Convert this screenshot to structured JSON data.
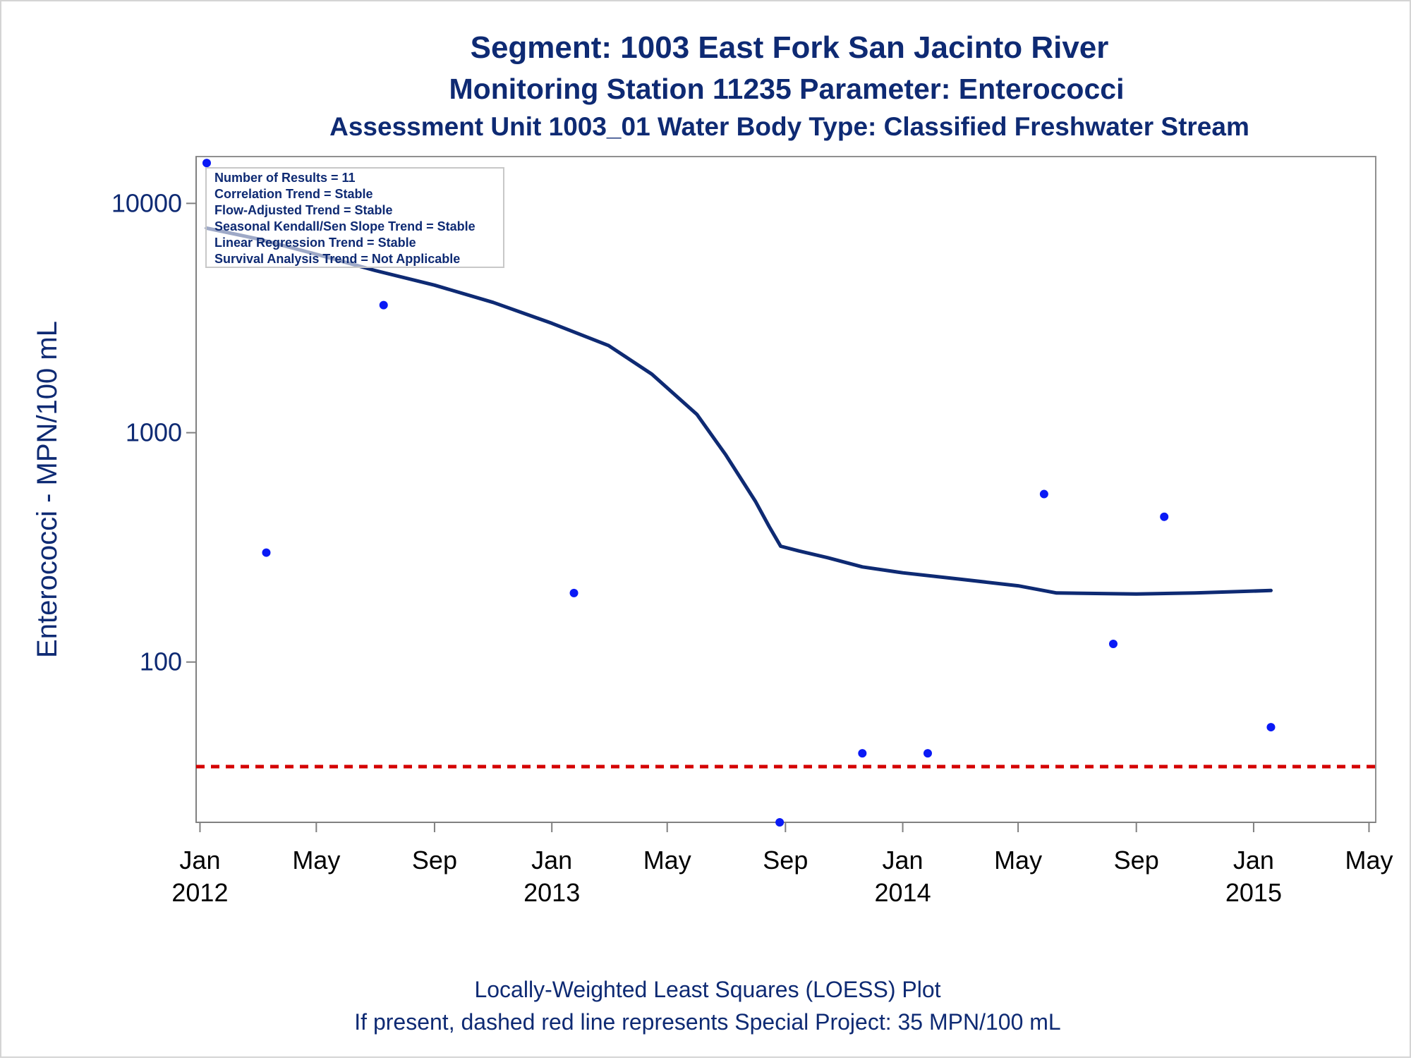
{
  "titles": {
    "line1": "Segment: 1003  East Fork San Jacinto River",
    "line2": "Monitoring Station 11235 Parameter: Enterococci",
    "line3": "Assessment Unit 1003_01   Water Body Type: Classified Freshwater Stream"
  },
  "footnotes": {
    "line1": "Locally-Weighted Least Squares (LOESS) Plot",
    "line2": "If present, dashed red line represents Special Project: 35 MPN/100 mL"
  },
  "stats_box": [
    "Number of Results = 11",
    "Correlation Trend = Stable",
    "Flow-Adjusted Trend = Stable",
    "Seasonal Kendall/Sen Slope Trend = Stable",
    "Linear Regression Trend = Stable",
    "Survival Analysis Trend = Not Applicable"
  ],
  "colors": {
    "title_text": "#0e2a73",
    "loess_line": "#0e2a73",
    "points": "#0a1af5",
    "reference_line": "#d40000",
    "axis": "#808080"
  },
  "chart_data": {
    "type": "scatter",
    "y_scale": "log",
    "ylabel": "Enterococci - MPN/100 mL",
    "xlabel": "",
    "ylim": [
      20,
      16000
    ],
    "xlim": [
      "2011-12-28",
      "2015-05-08"
    ],
    "y_ticks": [
      {
        "value": 100,
        "label": "100"
      },
      {
        "value": 1000,
        "label": "1000"
      },
      {
        "value": 10000,
        "label": "10000"
      }
    ],
    "x_ticks": [
      {
        "date": "2012-01-01",
        "label": "Jan",
        "year": "2012"
      },
      {
        "date": "2012-05-01",
        "label": "May",
        "year": ""
      },
      {
        "date": "2012-09-01",
        "label": "Sep",
        "year": ""
      },
      {
        "date": "2013-01-01",
        "label": "Jan",
        "year": "2013"
      },
      {
        "date": "2013-05-01",
        "label": "May",
        "year": ""
      },
      {
        "date": "2013-09-01",
        "label": "Sep",
        "year": ""
      },
      {
        "date": "2014-01-01",
        "label": "Jan",
        "year": "2014"
      },
      {
        "date": "2014-05-01",
        "label": "May",
        "year": ""
      },
      {
        "date": "2014-09-01",
        "label": "Sep",
        "year": ""
      },
      {
        "date": "2015-01-01",
        "label": "Jan",
        "year": "2015"
      },
      {
        "date": "2015-05-01",
        "label": "May",
        "year": ""
      }
    ],
    "series": [
      {
        "type": "scatter",
        "points": [
          {
            "date": "2012-01-08",
            "y": 15000
          },
          {
            "date": "2012-03-10",
            "y": 300
          },
          {
            "date": "2012-07-10",
            "y": 3600
          },
          {
            "date": "2013-01-24",
            "y": 200
          },
          {
            "date": "2013-08-26",
            "y": 20
          },
          {
            "date": "2013-11-20",
            "y": 40
          },
          {
            "date": "2014-01-27",
            "y": 40
          },
          {
            "date": "2014-05-28",
            "y": 540
          },
          {
            "date": "2014-08-08",
            "y": 120
          },
          {
            "date": "2014-09-30",
            "y": 430
          },
          {
            "date": "2015-01-19",
            "y": 52
          }
        ]
      },
      {
        "type": "line",
        "points": [
          {
            "date": "2012-01-08",
            "y": 7800
          },
          {
            "date": "2012-03-01",
            "y": 7000
          },
          {
            "date": "2012-05-01",
            "y": 6000
          },
          {
            "date": "2012-07-01",
            "y": 5100
          },
          {
            "date": "2012-09-01",
            "y": 4400
          },
          {
            "date": "2012-11-01",
            "y": 3700
          },
          {
            "date": "2013-01-01",
            "y": 3000
          },
          {
            "date": "2013-03-01",
            "y": 2400
          },
          {
            "date": "2013-04-15",
            "y": 1800
          },
          {
            "date": "2013-06-01",
            "y": 1200
          },
          {
            "date": "2013-07-01",
            "y": 800
          },
          {
            "date": "2013-08-01",
            "y": 500
          },
          {
            "date": "2013-08-15",
            "y": 390
          },
          {
            "date": "2013-08-27",
            "y": 320
          },
          {
            "date": "2013-09-15",
            "y": 305
          },
          {
            "date": "2013-10-15",
            "y": 285
          },
          {
            "date": "2013-11-20",
            "y": 260
          },
          {
            "date": "2014-01-01",
            "y": 245
          },
          {
            "date": "2014-03-01",
            "y": 230
          },
          {
            "date": "2014-05-01",
            "y": 215
          },
          {
            "date": "2014-06-10",
            "y": 200
          },
          {
            "date": "2014-09-01",
            "y": 198
          },
          {
            "date": "2014-11-01",
            "y": 200
          },
          {
            "date": "2015-01-19",
            "y": 205
          }
        ]
      }
    ],
    "reference_line": {
      "y": 35,
      "style": "dashed"
    },
    "legend": "top-left"
  }
}
